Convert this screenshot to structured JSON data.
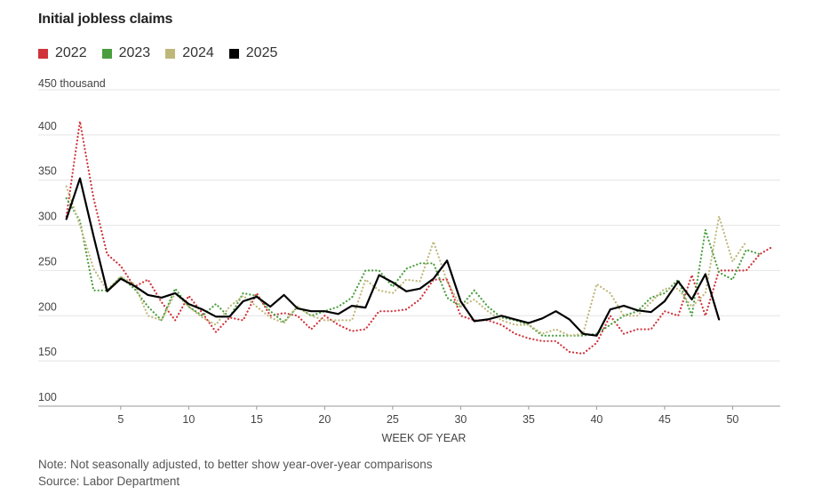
{
  "chart_data": {
    "type": "line",
    "title": "Initial jobless claims",
    "y_unit_label": "450 thousand",
    "xlabel": "WEEK OF YEAR",
    "ylim": [
      100,
      450
    ],
    "xlim": [
      0.5,
      53.5
    ],
    "y_ticks": [
      {
        "value": 100,
        "label": "100"
      },
      {
        "value": 150,
        "label": "150"
      },
      {
        "value": 200,
        "label": "200"
      },
      {
        "value": 250,
        "label": "250"
      },
      {
        "value": 300,
        "label": "300"
      },
      {
        "value": 350,
        "label": "350"
      },
      {
        "value": 400,
        "label": "400"
      }
    ],
    "x_ticks": [
      {
        "value": 5,
        "label": "5"
      },
      {
        "value": 10,
        "label": "10"
      },
      {
        "value": 15,
        "label": "15"
      },
      {
        "value": 20,
        "label": "20"
      },
      {
        "value": 25,
        "label": "25"
      },
      {
        "value": 30,
        "label": "30"
      },
      {
        "value": 35,
        "label": "35"
      },
      {
        "value": 40,
        "label": "40"
      },
      {
        "value": 45,
        "label": "45"
      },
      {
        "value": 50,
        "label": "50"
      }
    ],
    "series": [
      {
        "name": "2022",
        "color": "#d0333a",
        "style": "dotted",
        "x": [
          1,
          2,
          3,
          4,
          5,
          6,
          7,
          8,
          9,
          10,
          11,
          12,
          13,
          14,
          15,
          16,
          17,
          18,
          19,
          20,
          21,
          22,
          23,
          24,
          25,
          26,
          27,
          28,
          29,
          30,
          31,
          32,
          33,
          34,
          35,
          36,
          37,
          38,
          39,
          40,
          41,
          42,
          43,
          44,
          45,
          46,
          47,
          48,
          49,
          50,
          51,
          52,
          53
        ],
        "values": [
          310,
          415,
          330,
          268,
          255,
          232,
          240,
          215,
          195,
          222,
          203,
          182,
          198,
          195,
          225,
          200,
          203,
          200,
          185,
          200,
          190,
          183,
          185,
          205,
          205,
          207,
          218,
          240,
          240,
          200,
          195,
          195,
          190,
          180,
          175,
          172,
          172,
          160,
          158,
          170,
          200,
          180,
          185,
          185,
          205,
          200,
          245,
          200,
          250,
          250,
          250,
          268,
          277
        ]
      },
      {
        "name": "2023",
        "color": "#4a9e3e",
        "style": "dotted",
        "x": [
          1,
          2,
          3,
          4,
          5,
          6,
          7,
          8,
          9,
          10,
          11,
          12,
          13,
          14,
          15,
          16,
          17,
          18,
          19,
          20,
          21,
          22,
          23,
          24,
          25,
          26,
          27,
          28,
          29,
          30,
          31,
          32,
          33,
          34,
          35,
          36,
          37,
          38,
          39,
          40,
          41,
          42,
          43,
          44,
          45,
          46,
          47,
          48,
          49,
          50,
          51,
          52
        ],
        "values": [
          330,
          305,
          228,
          228,
          243,
          230,
          210,
          195,
          230,
          210,
          200,
          213,
          198,
          225,
          222,
          205,
          193,
          210,
          200,
          205,
          210,
          220,
          250,
          250,
          232,
          252,
          258,
          258,
          220,
          210,
          228,
          210,
          198,
          195,
          190,
          178,
          178,
          178,
          178,
          180,
          190,
          200,
          205,
          220,
          225,
          240,
          200,
          295,
          248,
          240,
          273,
          268
        ]
      },
      {
        "name": "2024",
        "color": "#bfb77a",
        "style": "dotted",
        "x": [
          1,
          2,
          3,
          4,
          5,
          6,
          7,
          8,
          9,
          10,
          11,
          12,
          13,
          14,
          15,
          16,
          17,
          18,
          19,
          20,
          21,
          22,
          23,
          24,
          25,
          26,
          27,
          28,
          29,
          30,
          31,
          32,
          33,
          34,
          35,
          36,
          37,
          38,
          39,
          40,
          41,
          42,
          43,
          44,
          45,
          46,
          47,
          48,
          49,
          50,
          51
        ],
        "values": [
          343,
          300,
          252,
          228,
          243,
          235,
          200,
          195,
          225,
          210,
          198,
          190,
          210,
          222,
          210,
          198,
          192,
          210,
          200,
          195,
          195,
          195,
          240,
          228,
          225,
          240,
          238,
          282,
          238,
          210,
          218,
          205,
          195,
          190,
          190,
          180,
          185,
          178,
          180,
          235,
          225,
          200,
          200,
          215,
          230,
          230,
          210,
          225,
          310,
          260,
          282
        ]
      },
      {
        "name": "2025",
        "color": "#000000",
        "style": "solid",
        "x": [
          1,
          2,
          3,
          4,
          5,
          6,
          7,
          8,
          9,
          10,
          11,
          12,
          13,
          14,
          15,
          16,
          17,
          18,
          19,
          20,
          21,
          22,
          23,
          24,
          25,
          26,
          27,
          28,
          29,
          30,
          31,
          32,
          33,
          34,
          35,
          36,
          37,
          38,
          39,
          40,
          41,
          42,
          43,
          44,
          45,
          46,
          47,
          48,
          49
        ],
        "values": [
          307,
          352,
          288,
          227,
          241,
          233,
          223,
          220,
          225,
          213,
          207,
          199,
          199,
          216,
          221,
          210,
          223,
          208,
          205,
          205,
          202,
          211,
          209,
          245,
          237,
          227,
          230,
          241,
          261,
          216,
          194,
          196,
          200,
          196,
          192,
          197,
          205,
          196,
          180,
          178,
          207,
          211,
          206,
          204,
          216,
          238,
          218,
          246,
          196
        ]
      }
    ]
  },
  "legend": {
    "items": [
      {
        "label": "2022",
        "color": "#d0333a"
      },
      {
        "label": "2023",
        "color": "#4a9e3e"
      },
      {
        "label": "2024",
        "color": "#bfb77a"
      },
      {
        "label": "2025",
        "color": "#000000"
      }
    ]
  },
  "footnotes": {
    "note": "Note: Not seasonally adjusted, to better show year-over-year comparisons",
    "source": "Source: Labor Department"
  },
  "colors": {
    "grid": "#e4e4e4",
    "axis": "#999999"
  }
}
